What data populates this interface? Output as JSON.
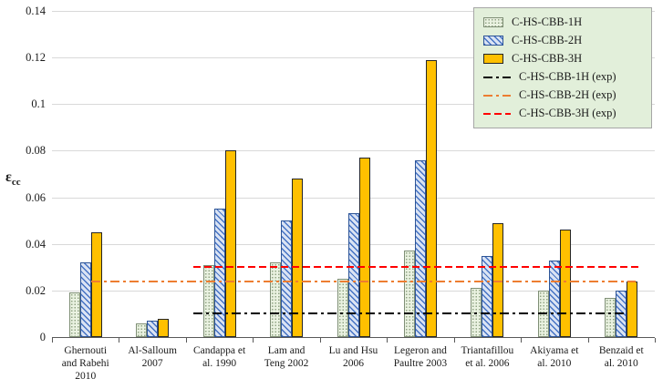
{
  "legend_box": {
    "bg": "#e2efda",
    "border": "#a6a6a6"
  },
  "axes": {
    "grid_color": "#d9d9d9",
    "axis_color": "#595959"
  },
  "chart_data": {
    "type": "bar",
    "title": "",
    "xlabel": "",
    "ylabel_symbol": "ε",
    "ylabel_sub": "cc",
    "ylim": [
      0,
      0.14
    ],
    "ytick_step": 0.02,
    "yticks": [
      "0",
      "0.02",
      "0.04",
      "0.06",
      "0.08",
      "0.1",
      "0.12",
      "0.14"
    ],
    "grid": true,
    "legend_position": "top-right",
    "categories": [
      [
        "Ghernouti",
        "and Rabehi",
        "2010"
      ],
      [
        "Al-Salloum",
        "2007"
      ],
      [
        "Candappa et",
        "al. 1990"
      ],
      [
        "Lam and",
        "Teng 2002"
      ],
      [
        "Lu and Hsu",
        "2006"
      ],
      [
        "Legeron and",
        "Paultre 2003"
      ],
      [
        "Triantafillou",
        "et al. 2006"
      ],
      [
        "Akiyama et",
        "al. 2010"
      ],
      [
        "Benzaid et",
        "al. 2010"
      ]
    ],
    "series": [
      {
        "name": "C-HS-CBB-1H",
        "values": [
          0.019,
          0.006,
          0.031,
          0.032,
          0.025,
          0.037,
          0.021,
          0.02,
          0.017
        ],
        "pattern": "dots",
        "fill": "#eaf2e1",
        "pattern_color": "#8fa383",
        "border": "#7f8f76"
      },
      {
        "name": "C-HS-CBB-2H",
        "values": [
          0.032,
          0.007,
          0.055,
          0.05,
          0.053,
          0.076,
          0.035,
          0.033,
          0.02
        ],
        "pattern": "diagonal",
        "fill": "#dae3f3",
        "pattern_color": "#4472c4",
        "border": "#2e5597"
      },
      {
        "name": "C-HS-CBB-3H",
        "values": [
          0.045,
          0.008,
          0.08,
          0.068,
          0.077,
          0.119,
          0.049,
          0.046,
          0.024
        ],
        "pattern": "solid",
        "fill": "#ffc000",
        "border": "#262626"
      }
    ],
    "ref_lines": [
      {
        "name": "C-HS-CBB-1H (exp)",
        "value": 0.01,
        "color": "#000000",
        "dash": "dashdot",
        "x_start": 0.235,
        "x_end": 0.955
      },
      {
        "name": "C-HS-CBB-2H (exp)",
        "value": 0.024,
        "color": "#ed7d31",
        "dash": "dashdot",
        "x_start": 0.065,
        "x_end": 0.968
      },
      {
        "name": "C-HS-CBB-3H (exp)",
        "value": 0.03,
        "color": "#ff0000",
        "dash": "dash",
        "x_start": 0.235,
        "x_end": 0.977
      }
    ]
  }
}
